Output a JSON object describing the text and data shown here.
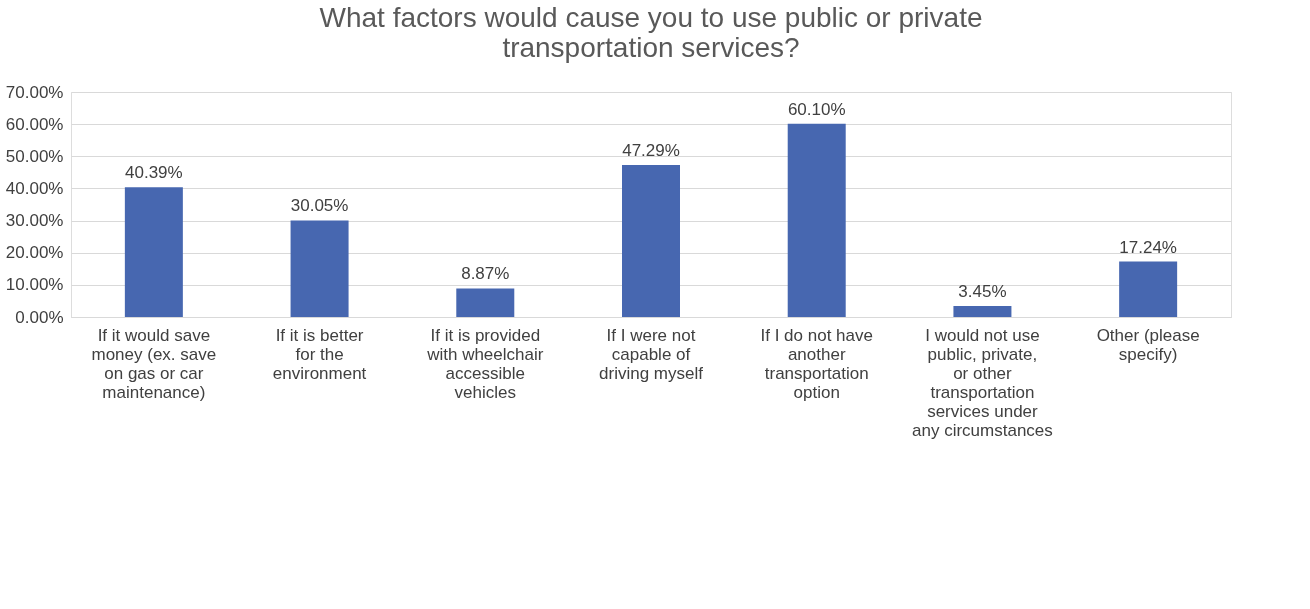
{
  "chart_data": {
    "type": "bar",
    "title": "What factors would cause you to use public or private transportation services?",
    "categories": [
      "If it would save money (ex. save on gas or car maintenance)",
      "If it is better for the environment",
      "If it is provided with wheelchair accessible vehicles",
      "If I were not capable of driving myself",
      "If I do not have another transportation option",
      "I would not use public, private, or other transportation services under any circumstances",
      "Other (please specify)"
    ],
    "values": [
      40.39,
      30.05,
      8.87,
      47.29,
      60.1,
      3.45,
      17.24
    ],
    "value_labels": [
      "40.39%",
      "30.05%",
      "8.87%",
      "47.29%",
      "60.10%",
      "3.45%",
      "17.24%"
    ],
    "color": "#4767b0",
    "ylim": [
      0,
      70
    ],
    "yticks": [
      {
        "value": 0,
        "label": "0.00%"
      },
      {
        "value": 10,
        "label": "10.00%"
      },
      {
        "value": 20,
        "label": "20.00%"
      },
      {
        "value": 30,
        "label": "30.00%"
      },
      {
        "value": 40,
        "label": "40.00%"
      },
      {
        "value": 50,
        "label": "50.00%"
      },
      {
        "value": 60,
        "label": "60.00%"
      },
      {
        "value": 70,
        "label": "70.00%"
      }
    ],
    "grid": "y"
  }
}
